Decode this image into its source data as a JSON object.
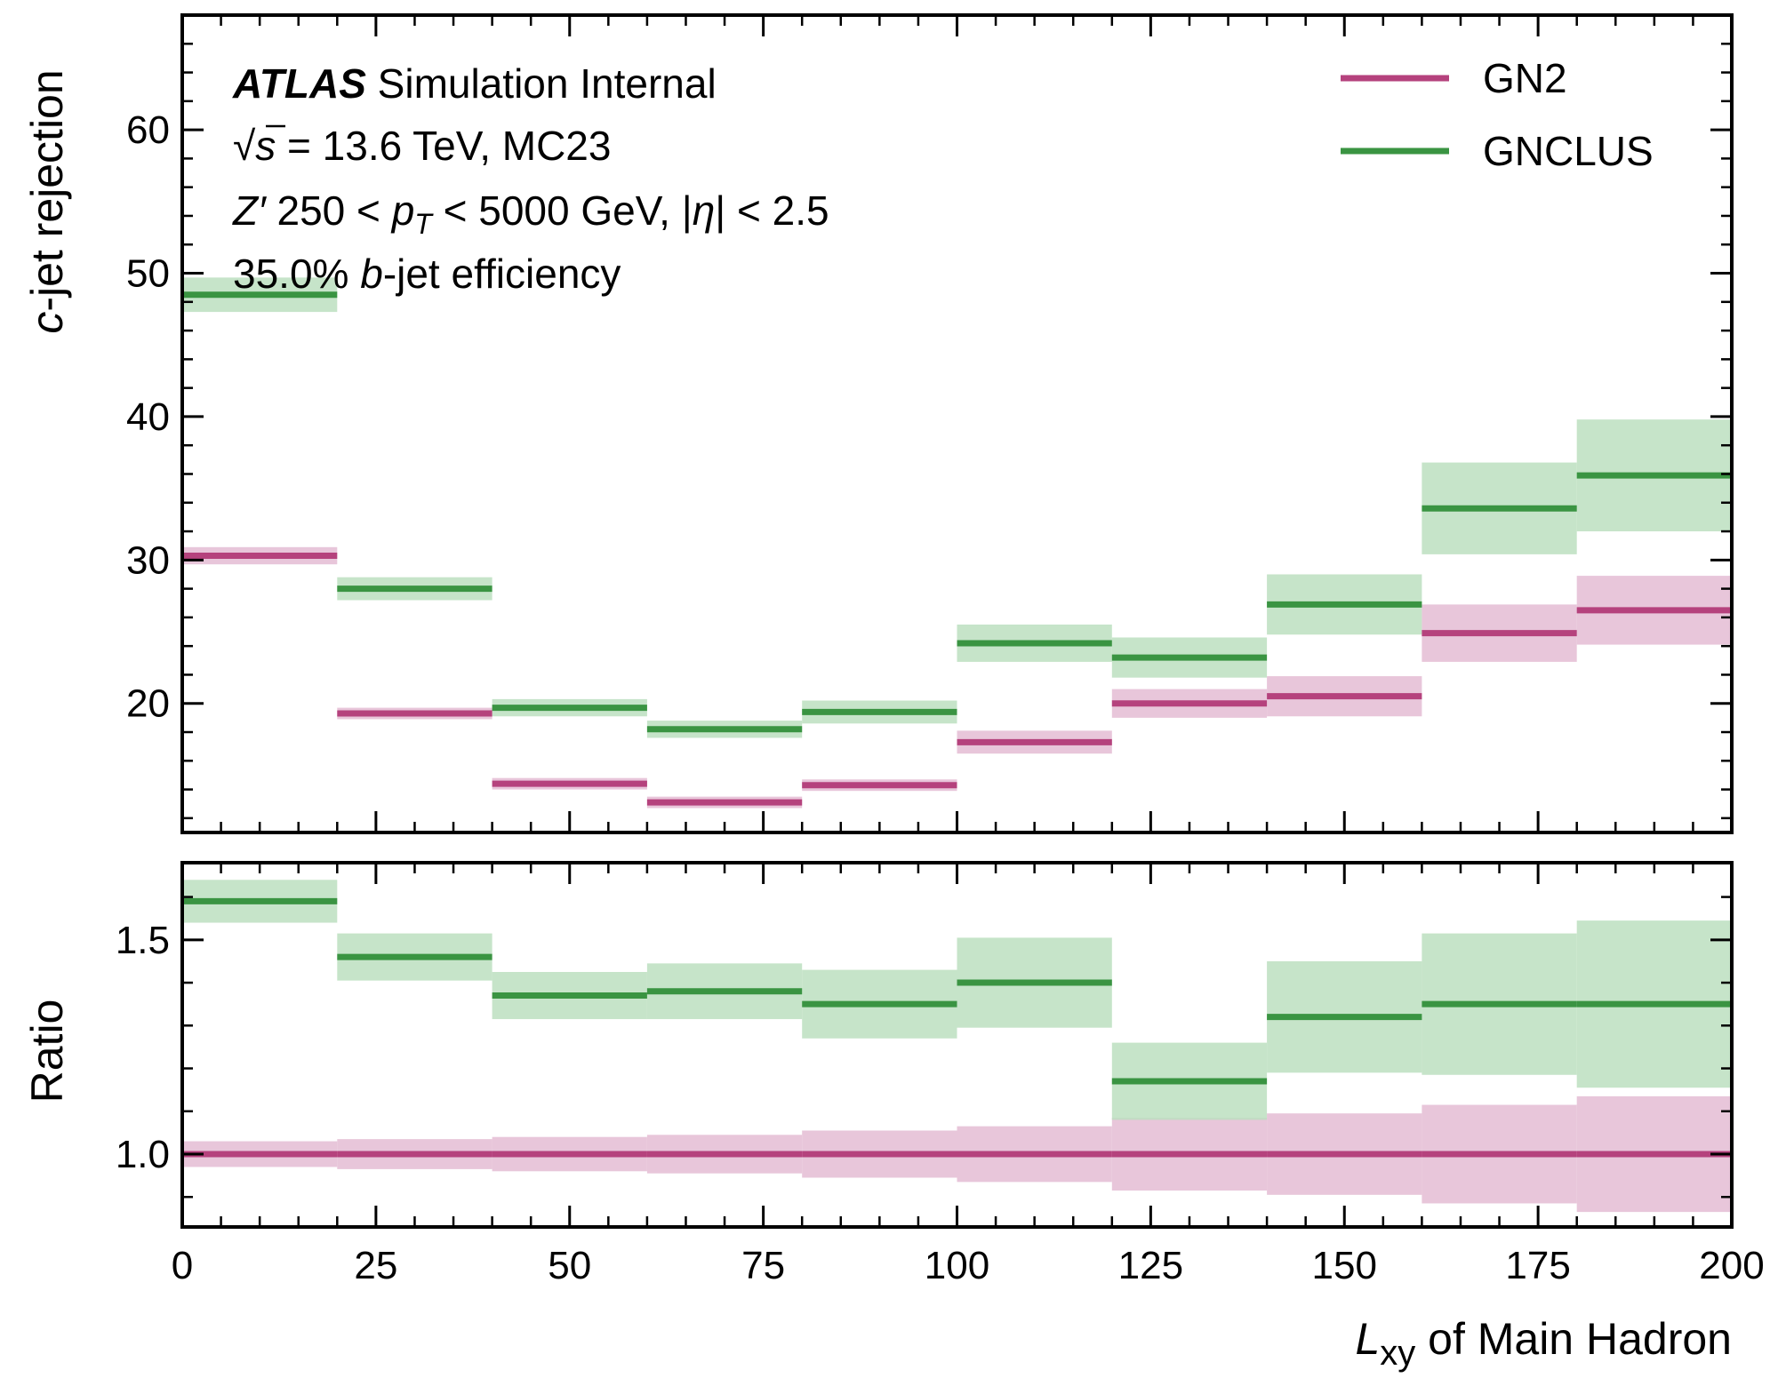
{
  "chart_data": [
    {
      "type": "step",
      "panel": "main",
      "ylabel": "c-jet rejection",
      "ylabel_italic": "c",
      "ylabel_rest": "-jet rejection",
      "ylim": [
        11,
        68
      ],
      "yticks": [
        20,
        30,
        40,
        50,
        60
      ],
      "ytick_labels": [
        "20",
        "30",
        "40",
        "50",
        "60"
      ],
      "xlim": [
        0,
        200
      ],
      "bin_edges": [
        0,
        20,
        40,
        60,
        80,
        100,
        120,
        140,
        160,
        180,
        200
      ],
      "series": [
        {
          "name": "GN2",
          "color": "#b5427d",
          "band_color": "#e4bcd3",
          "values": [
            30.3,
            19.3,
            14.4,
            13.1,
            14.3,
            17.3,
            20.0,
            20.5,
            24.9,
            26.5
          ],
          "err": [
            0.6,
            0.4,
            0.4,
            0.4,
            0.4,
            0.8,
            1.0,
            1.4,
            2.0,
            2.4
          ]
        },
        {
          "name": "GNCLUS",
          "color": "#3a9442",
          "band_color": "#bcdfc0",
          "values": [
            48.5,
            28.0,
            19.7,
            18.2,
            19.4,
            24.2,
            23.2,
            26.9,
            33.6,
            35.9
          ],
          "err": [
            1.2,
            0.8,
            0.6,
            0.6,
            0.8,
            1.3,
            1.4,
            2.1,
            3.2,
            3.9
          ]
        }
      ]
    },
    {
      "type": "step",
      "panel": "ratio",
      "ylabel": "Ratio",
      "ylim": [
        0.83,
        1.68
      ],
      "yticks": [
        1.0,
        1.5
      ],
      "ytick_labels": [
        "1.0",
        "1.5"
      ],
      "xlim": [
        0,
        200
      ],
      "xticks": [
        0,
        25,
        50,
        75,
        100,
        125,
        150,
        175,
        200
      ],
      "xtick_labels": [
        "0",
        "25",
        "50",
        "75",
        "100",
        "125",
        "150",
        "175",
        "200"
      ],
      "xlabel_symbol": "L",
      "xlabel_sub": "xy",
      "xlabel_rest": " of Main Hadron",
      "bin_edges": [
        0,
        20,
        40,
        60,
        80,
        100,
        120,
        140,
        160,
        180,
        200
      ],
      "series": [
        {
          "name": "GN2",
          "color": "#b5427d",
          "band_color": "#e4bcd3",
          "values": [
            1.0,
            1.0,
            1.0,
            1.0,
            1.0,
            1.0,
            1.0,
            1.0,
            1.0,
            1.0
          ],
          "err": [
            0.03,
            0.035,
            0.04,
            0.045,
            0.055,
            0.065,
            0.085,
            0.095,
            0.115,
            0.135
          ]
        },
        {
          "name": "GNCLUS",
          "color": "#3a9442",
          "band_color": "#bcdfc0",
          "values": [
            1.59,
            1.46,
            1.37,
            1.38,
            1.35,
            1.4,
            1.17,
            1.32,
            1.35,
            1.35
          ],
          "err": [
            0.05,
            0.055,
            0.055,
            0.065,
            0.08,
            0.105,
            0.09,
            0.13,
            0.165,
            0.195
          ]
        }
      ]
    }
  ],
  "annotations": {
    "atlas_bold": "ATLAS",
    "atlas_rest": " Simulation Internal",
    "sqrt": "√",
    "s_var": "s",
    "energy": " = 13.6 TeV, MC23",
    "sample_z": "Z′",
    "sample_mid": " 250 < ",
    "sample_p": "p",
    "sample_sub": "T",
    "sample_end": " < 5000 GeV, |",
    "sample_eta": "η",
    "sample_tail": "| < 2.5",
    "eff_pre": "35.0% ",
    "eff_b": "b",
    "eff_post": "-jet efficiency"
  },
  "legend": {
    "position": "top-right",
    "items": [
      "GN2",
      "GNCLUS"
    ]
  }
}
